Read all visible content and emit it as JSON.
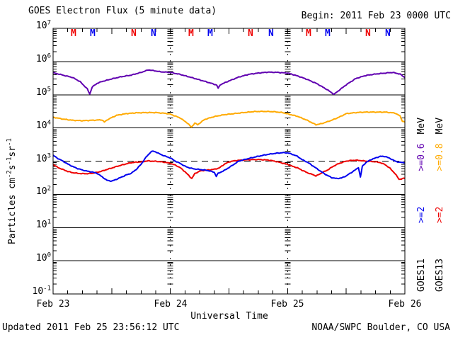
{
  "header": {
    "title": "GOES Electron Flux (5 minute data)",
    "begin_label": "Begin: 2011 Feb 23 0000 UTC"
  },
  "footer": {
    "updated": "Updated 2011 Feb 25 23:56:12 UTC",
    "source": "NOAA/SWPC Boulder, CO USA"
  },
  "colors": {
    "goes11_2mev": "#0000ee",
    "goes13_2mev": "#ee0000",
    "goes11_06mev": "#6000b0",
    "goes13_08mev": "#ffaa00",
    "grid": "#000000",
    "background": "#ffffff"
  },
  "legend": {
    "columns": [
      {
        "satellite": "GOES11",
        "threshold": ">=2",
        "threshold_color_key": "goes11_2mev",
        "energy": ">=0.6",
        "energy_color_key": "goes11_06mev",
        "unit": "MeV"
      },
      {
        "satellite": "GOES13",
        "threshold": ">=2",
        "threshold_color_key": "goes13_2mev",
        "energy": ">=0.8",
        "energy_color_key": "goes13_08mev",
        "unit": "MeV"
      }
    ]
  },
  "y_axis": {
    "tick_exponents": [
      7,
      6,
      5,
      4,
      3,
      2,
      1,
      0,
      -1
    ],
    "label_segments": [
      {
        "t": "Particles cm"
      },
      {
        "sup": "-2"
      },
      {
        "t": "s"
      },
      {
        "sup": "-1"
      },
      {
        "t": "sr"
      },
      {
        "sup": "-1"
      }
    ]
  },
  "chart_data": {
    "type": "line",
    "title": "GOES Electron Flux (5 minute data)",
    "xlabel": "Universal Time",
    "ylabel": "Particles cm^-2 s^-1 sr^-1",
    "x_unit": "hours since 2011 Feb 23 0000 UTC",
    "xlim": [
      0,
      72
    ],
    "ylim_exponents": [
      -1,
      7
    ],
    "grid": "horizontal-solid-per-decade",
    "x_ticks": [
      {
        "hour": 0,
        "label": "Feb 23"
      },
      {
        "hour": 24,
        "label": "Feb 24"
      },
      {
        "hour": 48,
        "label": "Feb 25"
      },
      {
        "hour": 72,
        "label": "Feb 26"
      }
    ],
    "x_minor_tick_hours": 3,
    "day_boundaries_hours": [
      24,
      48
    ],
    "threshold_line": {
      "value": 1000,
      "style": "dashed"
    },
    "satellite_markers": [
      {
        "label": "M",
        "hour": 4.4,
        "color_key": "goes13_2mev"
      },
      {
        "label": "M",
        "hour": 8.3,
        "color_key": "goes11_2mev"
      },
      {
        "label": "N",
        "hour": 16.6,
        "color_key": "goes13_2mev"
      },
      {
        "label": "N",
        "hour": 20.7,
        "color_key": "goes11_2mev"
      },
      {
        "label": "M",
        "hour": 28.4,
        "color_key": "goes13_2mev"
      },
      {
        "label": "M",
        "hour": 32.3,
        "color_key": "goes11_2mev"
      },
      {
        "label": "N",
        "hour": 40.6,
        "color_key": "goes13_2mev"
      },
      {
        "label": "N",
        "hour": 44.7,
        "color_key": "goes11_2mev"
      },
      {
        "label": "M",
        "hour": 52.4,
        "color_key": "goes13_2mev"
      },
      {
        "label": "M",
        "hour": 56.3,
        "color_key": "goes11_2mev"
      },
      {
        "label": "N",
        "hour": 64.6,
        "color_key": "goes13_2mev"
      },
      {
        "label": "N",
        "hour": 68.7,
        "color_key": "goes11_2mev"
      }
    ],
    "series": [
      {
        "name": "GOES11 >=0.6 MeV",
        "color_key": "goes11_06mev",
        "width": 2,
        "points": [
          [
            0,
            460000
          ],
          [
            2,
            390000
          ],
          [
            4,
            330000
          ],
          [
            5.5,
            250000
          ],
          [
            7,
            150000
          ],
          [
            7.5,
            105000
          ],
          [
            8,
            170000
          ],
          [
            9,
            220000
          ],
          [
            10,
            250000
          ],
          [
            12,
            300000
          ],
          [
            14,
            350000
          ],
          [
            16,
            390000
          ],
          [
            18,
            470000
          ],
          [
            19.5,
            560000
          ],
          [
            21,
            520000
          ],
          [
            22,
            490000
          ],
          [
            24,
            470000
          ],
          [
            26,
            410000
          ],
          [
            28,
            340000
          ],
          [
            30,
            280000
          ],
          [
            32,
            230000
          ],
          [
            33.5,
            195000
          ],
          [
            33.8,
            155000
          ],
          [
            34.2,
            200000
          ],
          [
            36,
            260000
          ],
          [
            38,
            340000
          ],
          [
            40,
            410000
          ],
          [
            42,
            450000
          ],
          [
            44,
            480000
          ],
          [
            46,
            470000
          ],
          [
            48,
            450000
          ],
          [
            50,
            370000
          ],
          [
            52,
            290000
          ],
          [
            54,
            215000
          ],
          [
            56,
            145000
          ],
          [
            57.5,
            103000
          ],
          [
            58.5,
            135000
          ],
          [
            60,
            200000
          ],
          [
            62,
            310000
          ],
          [
            64,
            380000
          ],
          [
            66,
            420000
          ],
          [
            68,
            450000
          ],
          [
            69.5,
            470000
          ],
          [
            71,
            420000
          ],
          [
            72,
            330000
          ]
        ]
      },
      {
        "name": "GOES13 >=0.8 MeV",
        "color_key": "goes13_08mev",
        "width": 2,
        "points": [
          [
            0,
            21000
          ],
          [
            2,
            18500
          ],
          [
            4,
            17000
          ],
          [
            6,
            16500
          ],
          [
            8,
            17000
          ],
          [
            10,
            17500
          ],
          [
            10.5,
            15000
          ],
          [
            11.2,
            18000
          ],
          [
            13,
            24000
          ],
          [
            15,
            27000
          ],
          [
            17,
            28500
          ],
          [
            19,
            29000
          ],
          [
            21,
            29000
          ],
          [
            23,
            27500
          ],
          [
            24,
            26000
          ],
          [
            26,
            20000
          ],
          [
            27.5,
            14000
          ],
          [
            28.3,
            10500
          ],
          [
            29,
            14000
          ],
          [
            29.6,
            12500
          ],
          [
            31,
            18000
          ],
          [
            33,
            22000
          ],
          [
            35,
            25000
          ],
          [
            37,
            27000
          ],
          [
            39,
            29000
          ],
          [
            41,
            31000
          ],
          [
            43,
            31500
          ],
          [
            45,
            31000
          ],
          [
            47,
            29000
          ],
          [
            48,
            26500
          ],
          [
            50,
            22500
          ],
          [
            52,
            17000
          ],
          [
            53.8,
            12500
          ],
          [
            55,
            13500
          ],
          [
            57,
            17000
          ],
          [
            58.5,
            21000
          ],
          [
            60,
            27000
          ],
          [
            62,
            29000
          ],
          [
            64,
            30000
          ],
          [
            66,
            30000
          ],
          [
            68,
            30000
          ],
          [
            70,
            28000
          ],
          [
            71,
            23000
          ],
          [
            71.5,
            16000
          ],
          [
            72,
            15000
          ]
        ]
      },
      {
        "name": "GOES13 >=2 MeV",
        "color_key": "goes13_2mev",
        "width": 2,
        "points": [
          [
            0,
            800
          ],
          [
            1,
            640
          ],
          [
            2,
            560
          ],
          [
            3,
            490
          ],
          [
            4,
            450
          ],
          [
            5,
            430
          ],
          [
            6,
            420
          ],
          [
            7,
            420
          ],
          [
            8,
            430
          ],
          [
            9,
            460
          ],
          [
            10,
            500
          ],
          [
            11,
            560
          ],
          [
            12,
            620
          ],
          [
            13,
            690
          ],
          [
            14,
            760
          ],
          [
            15,
            830
          ],
          [
            16,
            900
          ],
          [
            17,
            930
          ],
          [
            18,
            950
          ],
          [
            19,
            1000
          ],
          [
            19.5,
            1020
          ],
          [
            20,
            1000
          ],
          [
            21,
            990
          ],
          [
            22,
            960
          ],
          [
            23,
            920
          ],
          [
            24,
            860
          ],
          [
            25,
            760
          ],
          [
            26,
            640
          ],
          [
            27,
            480
          ],
          [
            28,
            340
          ],
          [
            28.4,
            300
          ],
          [
            29,
            420
          ],
          [
            30,
            500
          ],
          [
            31,
            530
          ],
          [
            32,
            545
          ],
          [
            33,
            570
          ],
          [
            34,
            620
          ],
          [
            35,
            800
          ],
          [
            36,
            950
          ],
          [
            37,
            1020
          ],
          [
            38,
            1060
          ],
          [
            40,
            1100
          ],
          [
            42,
            1120
          ],
          [
            44,
            1080
          ],
          [
            45,
            1020
          ],
          [
            46,
            950
          ],
          [
            47,
            870
          ],
          [
            48,
            800
          ],
          [
            49,
            700
          ],
          [
            50,
            630
          ],
          [
            51,
            530
          ],
          [
            52,
            450
          ],
          [
            53,
            400
          ],
          [
            53.8,
            360
          ],
          [
            54.5,
            400
          ],
          [
            55,
            450
          ],
          [
            56,
            520
          ],
          [
            57,
            650
          ],
          [
            58,
            790
          ],
          [
            59,
            900
          ],
          [
            60,
            1000
          ],
          [
            61,
            1050
          ],
          [
            62,
            1070
          ],
          [
            63,
            1040
          ],
          [
            64,
            1000
          ],
          [
            65,
            980
          ],
          [
            66,
            960
          ],
          [
            67,
            900
          ],
          [
            68,
            780
          ],
          [
            69,
            600
          ],
          [
            70,
            420
          ],
          [
            70.8,
            285
          ],
          [
            71.3,
            290
          ],
          [
            72,
            310
          ]
        ]
      },
      {
        "name": "GOES11 >=2 MeV",
        "color_key": "goes11_2mev",
        "width": 2,
        "points": [
          [
            0,
            1500
          ],
          [
            1,
            1200
          ],
          [
            2,
            1000
          ],
          [
            3,
            820
          ],
          [
            4,
            690
          ],
          [
            5,
            600
          ],
          [
            6,
            540
          ],
          [
            7,
            500
          ],
          [
            8,
            470
          ],
          [
            9,
            430
          ],
          [
            10,
            340
          ],
          [
            11,
            265
          ],
          [
            12,
            250
          ],
          [
            13,
            285
          ],
          [
            14,
            330
          ],
          [
            15,
            385
          ],
          [
            16,
            430
          ],
          [
            17,
            560
          ],
          [
            18,
            800
          ],
          [
            19,
            1300
          ],
          [
            20,
            1900
          ],
          [
            20.5,
            2000
          ],
          [
            21,
            1900
          ],
          [
            22,
            1600
          ],
          [
            23,
            1400
          ],
          [
            24,
            1250
          ],
          [
            25,
            1000
          ],
          [
            26,
            860
          ],
          [
            27,
            700
          ],
          [
            28,
            620
          ],
          [
            29,
            580
          ],
          [
            30,
            560
          ],
          [
            31,
            540
          ],
          [
            32,
            510
          ],
          [
            33,
            460
          ],
          [
            33.4,
            350
          ],
          [
            33.8,
            430
          ],
          [
            34.5,
            480
          ],
          [
            35,
            520
          ],
          [
            36,
            640
          ],
          [
            37,
            800
          ],
          [
            38,
            1000
          ],
          [
            39,
            1100
          ],
          [
            40,
            1200
          ],
          [
            41,
            1300
          ],
          [
            42,
            1400
          ],
          [
            43,
            1500
          ],
          [
            44,
            1600
          ],
          [
            45,
            1680
          ],
          [
            46,
            1750
          ],
          [
            47,
            1800
          ],
          [
            48,
            1780
          ],
          [
            49,
            1600
          ],
          [
            50,
            1400
          ],
          [
            51,
            1100
          ],
          [
            52,
            940
          ],
          [
            53,
            750
          ],
          [
            54,
            590
          ],
          [
            55,
            470
          ],
          [
            56,
            380
          ],
          [
            57,
            320
          ],
          [
            58,
            300
          ],
          [
            59,
            310
          ],
          [
            60,
            360
          ],
          [
            61,
            450
          ],
          [
            62,
            560
          ],
          [
            62.5,
            650
          ],
          [
            62.9,
            330
          ],
          [
            63.3,
            700
          ],
          [
            64,
            900
          ],
          [
            65,
            1100
          ],
          [
            66,
            1250
          ],
          [
            67,
            1400
          ],
          [
            68,
            1380
          ],
          [
            69,
            1200
          ],
          [
            70,
            1000
          ],
          [
            71,
            920
          ],
          [
            72,
            900
          ]
        ]
      }
    ]
  }
}
